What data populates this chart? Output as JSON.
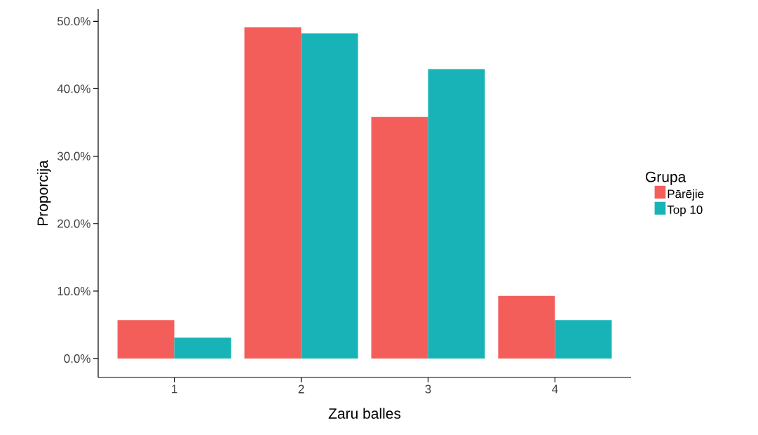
{
  "chart_data": {
    "type": "bar",
    "xlabel": "Zaru balles",
    "ylabel": "Proporcija",
    "legend_title": "Grupa",
    "categories": [
      "1",
      "2",
      "3",
      "4"
    ],
    "series": [
      {
        "name": "Pārējie",
        "color": "#f35e5a",
        "values": [
          5.7,
          49.1,
          35.8,
          9.3
        ]
      },
      {
        "name": "Top 10",
        "color": "#17b3b7",
        "values": [
          3.1,
          48.2,
          42.9,
          5.7
        ]
      }
    ],
    "ylim": [
      -2.8,
      51.8
    ],
    "yticks": [
      {
        "value": 0,
        "label": "0.0%"
      },
      {
        "value": 10,
        "label": "10.0%"
      },
      {
        "value": 20,
        "label": "20.0%"
      },
      {
        "value": 30,
        "label": "30.0%"
      },
      {
        "value": 40,
        "label": "40.0%"
      },
      {
        "value": 50,
        "label": "50.0%"
      }
    ],
    "grid": false,
    "legend": "right"
  }
}
